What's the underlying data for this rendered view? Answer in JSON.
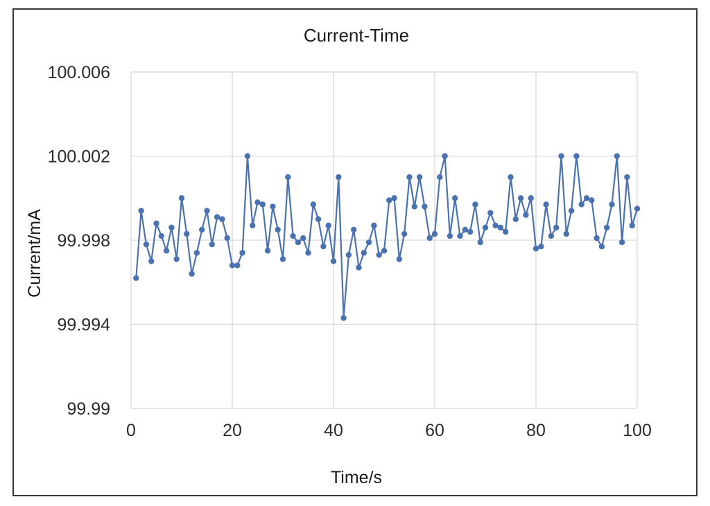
{
  "chart_data": {
    "type": "line",
    "title": "Current-Time",
    "xlabel": "Time/s",
    "ylabel": "Current/mA",
    "xlim": [
      0,
      100
    ],
    "ylim": [
      99.99,
      100.006
    ],
    "xticks": [
      "0",
      "20",
      "40",
      "60",
      "80",
      "100"
    ],
    "yticks": [
      "99.99",
      "99.994",
      "99.998",
      "100.002",
      "100.006"
    ],
    "grid": true,
    "legend": "none",
    "series_color": "#4a72b0",
    "series": [
      {
        "x": [
          1,
          2,
          3,
          4,
          5,
          6,
          7,
          8,
          9,
          10,
          11,
          12,
          13,
          14,
          15,
          16,
          17,
          18,
          19,
          20,
          21,
          22,
          23,
          24,
          25,
          26,
          27,
          28,
          29,
          30,
          31,
          32,
          33,
          34,
          35,
          36,
          37,
          38,
          39,
          40,
          41,
          42,
          43,
          44,
          45,
          46,
          47,
          48,
          49,
          50,
          51,
          52,
          53,
          54,
          55,
          56,
          57,
          58,
          59,
          60,
          61,
          62,
          63,
          64,
          65,
          66,
          67,
          68,
          69,
          70,
          71,
          72,
          73,
          74,
          75,
          76,
          77,
          78,
          79,
          80,
          81,
          82,
          83,
          84,
          85,
          86,
          87,
          88,
          89,
          90,
          91,
          92,
          93,
          94,
          95,
          96,
          97,
          98,
          99,
          100
        ],
        "values": [
          99.9962,
          99.9994,
          99.9978,
          99.997,
          99.9988,
          99.9982,
          99.9975,
          99.9986,
          99.9971,
          100.0,
          99.9983,
          99.9964,
          99.9974,
          99.9985,
          99.9994,
          99.9978,
          99.9991,
          99.999,
          99.9981,
          99.9968,
          99.9968,
          99.9974,
          100.002,
          99.9987,
          99.9998,
          99.9997,
          99.9975,
          99.9996,
          99.9985,
          99.9971,
          100.001,
          99.9982,
          99.9979,
          99.9981,
          99.9974,
          99.9997,
          99.999,
          99.9977,
          99.9987,
          99.997,
          100.001,
          99.9943,
          99.9973,
          99.9985,
          99.9967,
          99.9974,
          99.9979,
          99.9987,
          99.9973,
          99.9975,
          99.9999,
          100.0,
          99.9971,
          99.9983,
          100.001,
          99.9996,
          100.001,
          99.9996,
          99.9981,
          99.9983,
          100.001,
          100.002,
          99.9982,
          100.0,
          99.9982,
          99.9985,
          99.9984,
          99.9997,
          99.9979,
          99.9986,
          99.9993,
          99.9987,
          99.9986,
          99.9984,
          100.001,
          99.999,
          100.0,
          99.9992,
          100.0,
          99.9976,
          99.9977,
          99.9997,
          99.9982,
          99.9986,
          100.002,
          99.9983,
          99.9994,
          100.002,
          99.9997,
          100.0,
          99.9999,
          99.9981,
          99.9977,
          99.9986,
          99.9997,
          100.002,
          99.9979,
          100.001,
          99.9987,
          99.9995
        ]
      }
    ]
  }
}
